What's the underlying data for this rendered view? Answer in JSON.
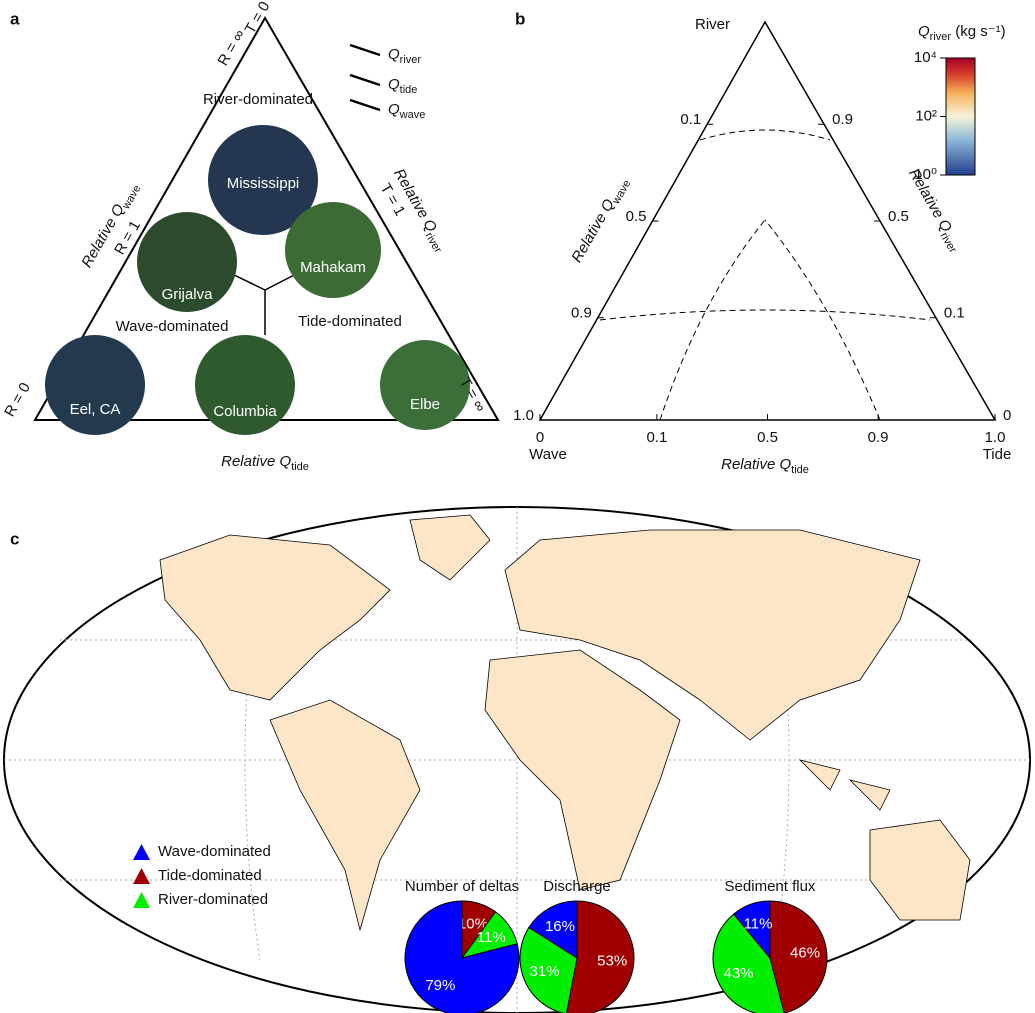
{
  "panel_labels": [
    "a",
    "b",
    "c"
  ],
  "panel_a": {
    "corner_labels": [
      "R = ∞",
      "T = 0",
      "R = 1",
      "T = 1",
      "R = 0",
      "T = ∞"
    ],
    "regions": [
      "River-dominated",
      "Wave-dominated",
      "Tide-dominated"
    ],
    "deltas": [
      "Mississippi",
      "Grijalva",
      "Mahakam",
      "Eel, CA",
      "Columbia",
      "Elbe"
    ],
    "axis_wave": {
      "main": "Relative Q",
      "sub": "wave"
    },
    "axis_river": {
      "main": "Relative Q",
      "sub": "river"
    },
    "axis_tide": {
      "main": "Relative Q",
      "sub": "tide"
    },
    "legend": [
      {
        "main": "Q",
        "sub": "river"
      },
      {
        "main": "Q",
        "sub": "tide"
      },
      {
        "main": "Q",
        "sub": "wave"
      }
    ]
  },
  "panel_b": {
    "corners": [
      "River",
      "Wave",
      "Tide"
    ],
    "axis_wave": {
      "main": "Relative Q",
      "sub": "wave"
    },
    "axis_river": {
      "main": "Relative Q",
      "sub": "river"
    },
    "axis_tide": {
      "main": "Relative Q",
      "sub": "tide"
    },
    "bottom_ticks": [
      0,
      0.1,
      0.5,
      0.9,
      {
        "value": 1,
        "label": "1.0"
      }
    ],
    "left_ticks": [
      0.1,
      0.5,
      0.9,
      {
        "value": 1,
        "label": "1.0"
      }
    ],
    "right_ticks": [
      0.9,
      0.5,
      0.1,
      0
    ],
    "colorbar": {
      "title": {
        "main": "Q",
        "sub": "river",
        "suffix": " (kg s⁻¹)"
      },
      "log": true,
      "ylim": [
        1,
        10000
      ],
      "yticks": [
        {
          "value": 1,
          "label": "10⁰"
        },
        {
          "value": 100,
          "label": "10²"
        },
        {
          "value": 10000,
          "label": "10⁴"
        }
      ]
    }
  },
  "panel_c": {
    "legend": [
      {
        "name": "Wave-dominated",
        "color": "#0000ff"
      },
      {
        "name": "Tide-dominated",
        "color": "#a00000"
      },
      {
        "name": "River-dominated",
        "color": "#00ee00"
      }
    ]
  },
  "chart_data": [
    {
      "type": "pie",
      "title": "Number of deltas",
      "values": [
        10,
        11,
        79
      ],
      "value_labels": [
        "10%",
        "11%",
        "79%"
      ],
      "colors": [
        "#a00000",
        "#00ee00",
        "#0000ff"
      ]
    },
    {
      "type": "pie",
      "title": "Discharge",
      "values": [
        53,
        31,
        16
      ],
      "value_labels": [
        "53%",
        "31%",
        "16%"
      ],
      "colors": [
        "#a00000",
        "#00ee00",
        "#0000ff"
      ]
    },
    {
      "type": "pie",
      "title": "Sediment flux",
      "values": [
        46,
        43,
        11
      ],
      "value_labels": [
        "46%",
        "43%",
        "11%"
      ],
      "colors": [
        "#a00000",
        "#00ee00",
        "#0000ff"
      ]
    }
  ]
}
